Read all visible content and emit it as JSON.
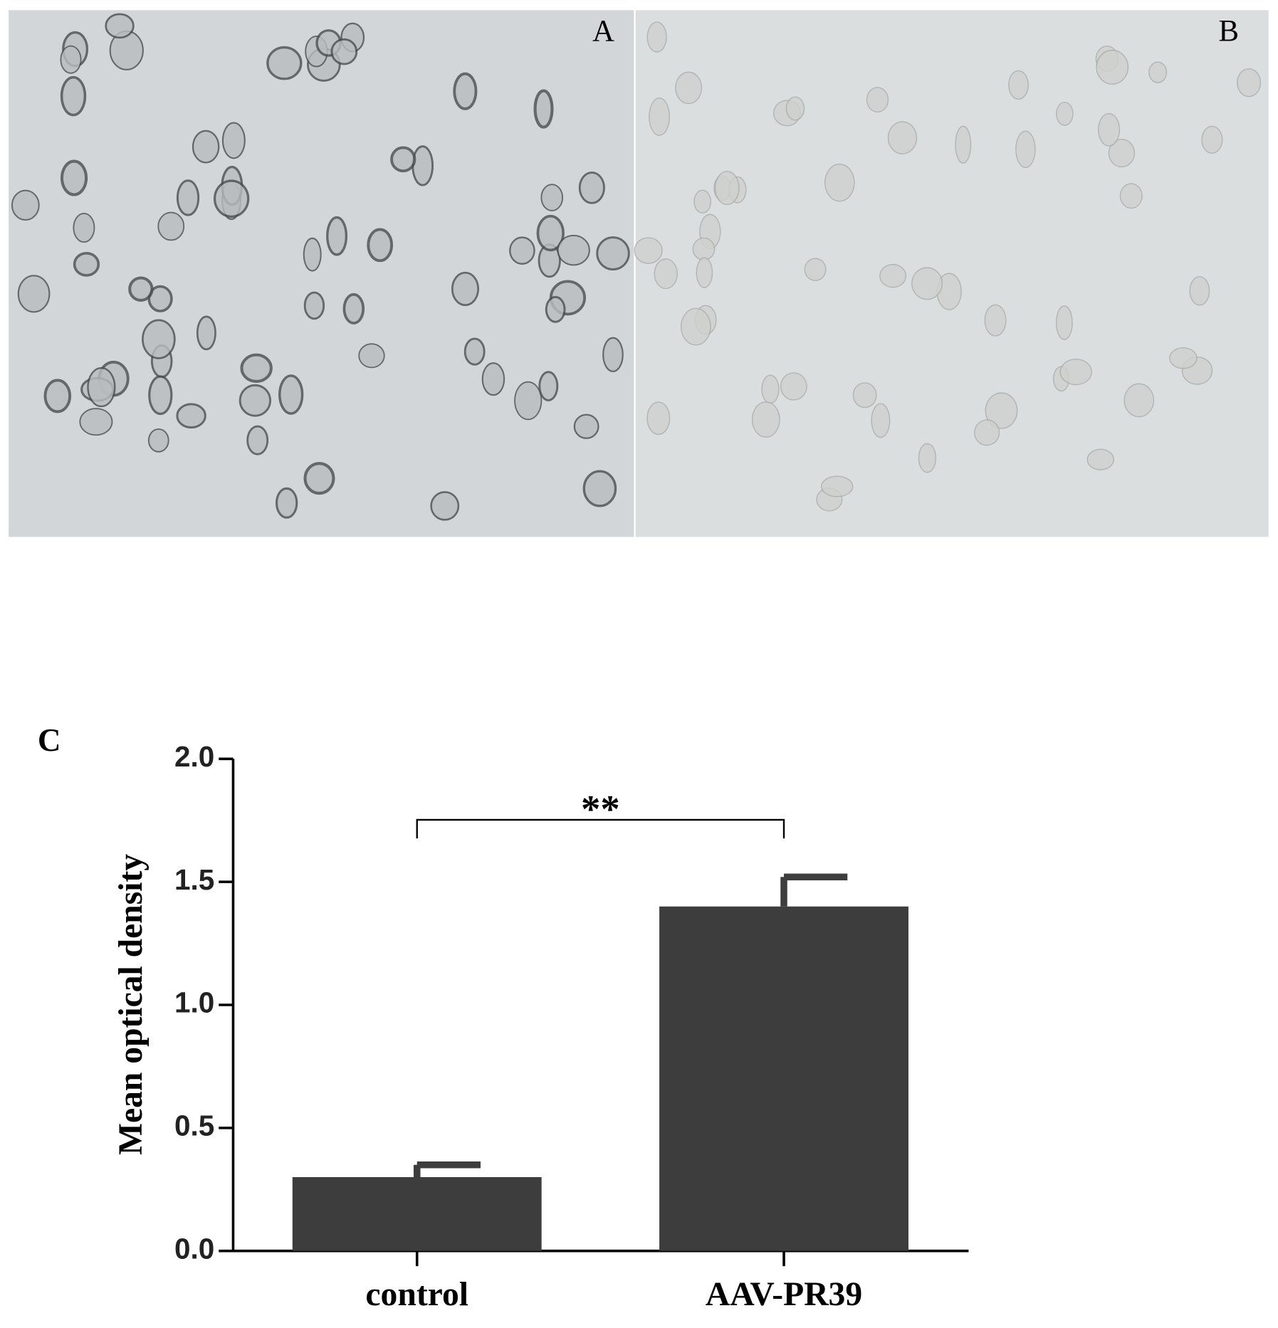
{
  "panels": {
    "a_label": "A",
    "b_label": "B",
    "c_label": "C"
  },
  "chart_data": {
    "type": "bar",
    "ylabel": "Mean optical density",
    "categories": [
      "control",
      "AAV-PR39"
    ],
    "values": [
      0.3,
      1.4
    ],
    "errors": [
      0.05,
      0.12
    ],
    "color": "#3d3d3d",
    "ylim": [
      0,
      2
    ],
    "yticks": [
      {
        "value": 0,
        "label": "0.0"
      },
      {
        "value": 0.5,
        "label": "0.5"
      },
      {
        "value": 1,
        "label": "1.0"
      },
      {
        "value": 1.5,
        "label": "1.5"
      },
      {
        "value": 2,
        "label": "2.0"
      }
    ],
    "annotation": "**"
  }
}
